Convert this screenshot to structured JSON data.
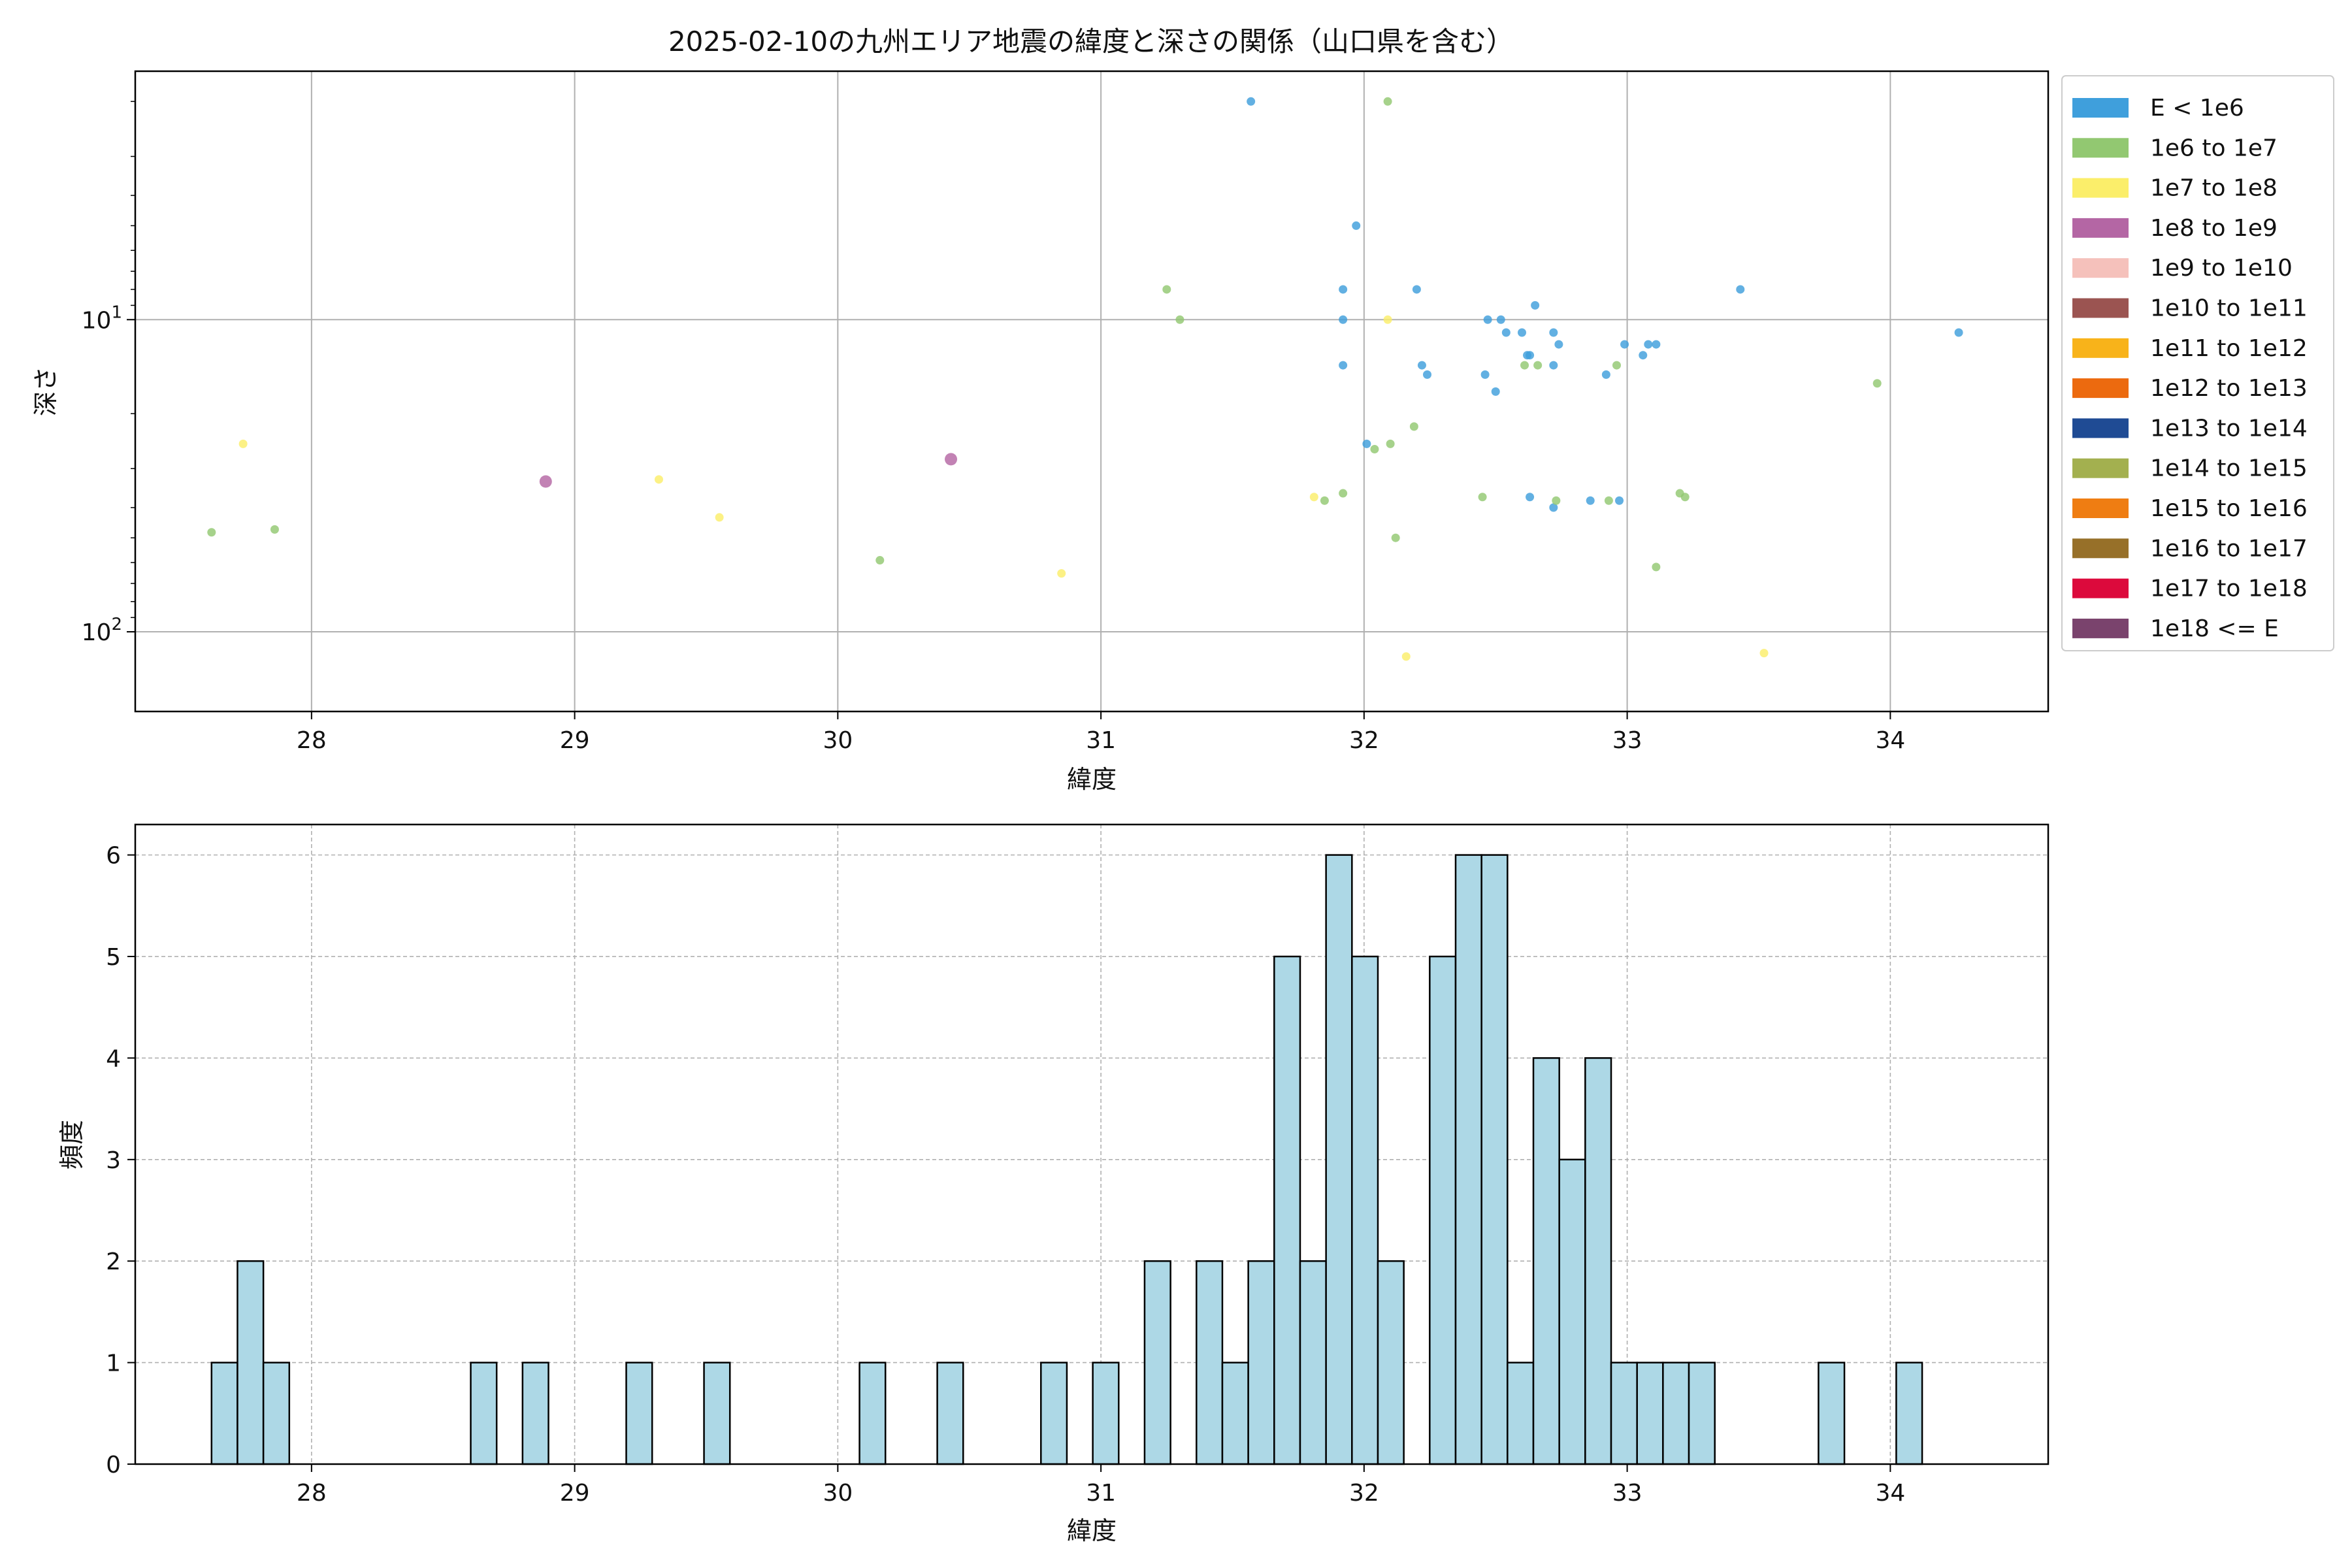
{
  "chart_data": [
    {
      "type": "scatter",
      "title": "2025-02-10の九州エリア地震の緯度と深さの関係（山口県を含む）",
      "xlabel": "緯度",
      "ylabel": "深さ",
      "xlim": [
        27.33,
        34.6
      ],
      "x_ticks": [
        28,
        29,
        30,
        31,
        32,
        33,
        34
      ],
      "y_scale": "log",
      "y_inverted": true,
      "ylim": [
        1.6,
        180
      ],
      "y_ticks": [
        {
          "value": 10,
          "base": "10",
          "exp": "1"
        },
        {
          "value": 100,
          "base": "10",
          "exp": "2"
        }
      ],
      "grid": true,
      "legend_position": "outside-right",
      "legend": [
        {
          "label": "E < 1e6",
          "color": "#3f9fdc"
        },
        {
          "label": "1e6 to 1e7",
          "color": "#92c871"
        },
        {
          "label": "1e7 to 1e8",
          "color": "#fbee6a"
        },
        {
          "label": "1e8 to 1e9",
          "color": "#b466a4"
        },
        {
          "label": "1e9 to 1e10",
          "color": "#f5c1bb"
        },
        {
          "label": "1e10 to 1e11",
          "color": "#9b5451"
        },
        {
          "label": "1e11 to 1e12",
          "color": "#f8b31a"
        },
        {
          "label": "1e12 to 1e13",
          "color": "#ec6a0f"
        },
        {
          "label": "1e13 to 1e14",
          "color": "#1f4b94"
        },
        {
          "label": "1e14 to 1e15",
          "color": "#a3b04f"
        },
        {
          "label": "1e15 to 1e16",
          "color": "#ef7d12"
        },
        {
          "label": "1e16 to 1e17",
          "color": "#977029"
        },
        {
          "label": "1e17 to 1e18",
          "color": "#dc0a3c"
        },
        {
          "label": "1e18 <= E",
          "color": "#7a436d"
        }
      ],
      "series": [
        {
          "name": "E < 1e6",
          "color": "#3f9fdc",
          "points": [
            [
              31.57,
              2.0
            ],
            [
              31.97,
              5.0
            ],
            [
              31.92,
              8.0
            ],
            [
              31.92,
              10.0
            ],
            [
              31.92,
              14.0
            ],
            [
              32.2,
              8.0
            ],
            [
              32.22,
              14.0
            ],
            [
              32.24,
              15.0
            ],
            [
              32.01,
              25.0
            ],
            [
              32.47,
              10.0
            ],
            [
              32.52,
              10.0
            ],
            [
              32.54,
              11.0
            ],
            [
              32.6,
              11.0
            ],
            [
              32.62,
              13.0
            ],
            [
              32.63,
              13.0
            ],
            [
              32.65,
              9.0
            ],
            [
              32.72,
              11.0
            ],
            [
              32.74,
              12.0
            ],
            [
              32.72,
              14.0
            ],
            [
              32.46,
              15.0
            ],
            [
              32.5,
              17.0
            ],
            [
              32.63,
              37.0
            ],
            [
              32.72,
              40.0
            ],
            [
              32.86,
              38.0
            ],
            [
              32.92,
              15.0
            ],
            [
              32.97,
              38.0
            ],
            [
              32.99,
              12.0
            ],
            [
              33.06,
              13.0
            ],
            [
              33.08,
              12.0
            ],
            [
              33.11,
              12.0
            ],
            [
              33.43,
              8.0
            ],
            [
              34.26,
              11.0
            ]
          ]
        },
        {
          "name": "1e6 to 1e7",
          "color": "#92c871",
          "points": [
            [
              32.09,
              2.0
            ],
            [
              31.25,
              8.0
            ],
            [
              31.3,
              10.0
            ],
            [
              32.61,
              14.0
            ],
            [
              32.66,
              14.0
            ],
            [
              32.96,
              14.0
            ],
            [
              33.95,
              16.0
            ],
            [
              32.19,
              22.0
            ],
            [
              32.1,
              25.0
            ],
            [
              32.04,
              26.0
            ],
            [
              31.92,
              36.0
            ],
            [
              31.85,
              38.0
            ],
            [
              32.45,
              37.0
            ],
            [
              32.73,
              38.0
            ],
            [
              32.93,
              38.0
            ],
            [
              33.2,
              36.0
            ],
            [
              33.22,
              37.0
            ],
            [
              32.12,
              50.0
            ],
            [
              33.11,
              62.0
            ],
            [
              27.62,
              48.0
            ],
            [
              27.86,
              47.0
            ],
            [
              30.16,
              59.0
            ]
          ]
        },
        {
          "name": "1e7 to 1e8",
          "color": "#fbee6a",
          "points": [
            [
              32.09,
              10.0
            ],
            [
              27.74,
              25.0
            ],
            [
              29.32,
              32.5
            ],
            [
              29.55,
              43.0
            ],
            [
              30.85,
              65.0
            ],
            [
              31.81,
              37.0
            ],
            [
              32.16,
              120.0
            ],
            [
              33.52,
              117.0
            ]
          ]
        },
        {
          "name": "1e8 to 1e9",
          "color": "#b466a4",
          "points": [
            [
              28.89,
              33.0
            ],
            [
              30.43,
              28.0
            ]
          ]
        }
      ]
    },
    {
      "type": "bar",
      "subtype": "histogram",
      "xlabel": "緯度",
      "ylabel": "頻度",
      "xlim": [
        27.33,
        34.6
      ],
      "ylim": [
        0,
        6.3
      ],
      "x_ticks": [
        28,
        29,
        30,
        31,
        32,
        33,
        34
      ],
      "y_ticks": [
        0,
        1,
        2,
        3,
        4,
        5,
        6
      ],
      "bin_start": 27.62,
      "bin_width": 0.0985,
      "counts": [
        1,
        2,
        1,
        0,
        0,
        0,
        0,
        0,
        0,
        0,
        1,
        0,
        1,
        0,
        0,
        0,
        1,
        0,
        0,
        1,
        0,
        0,
        0,
        0,
        0,
        1,
        0,
        0,
        1,
        0,
        0,
        0,
        1,
        0,
        1,
        0,
        2,
        0,
        2,
        1,
        2,
        5,
        2,
        6,
        5,
        2,
        0,
        5,
        6,
        6,
        1,
        4,
        3,
        4,
        1,
        1,
        1,
        1,
        0,
        0,
        0,
        0,
        1,
        0,
        0,
        1
      ],
      "bar_color": "#add8e6",
      "edge_color": "#000000",
      "grid": true
    }
  ]
}
